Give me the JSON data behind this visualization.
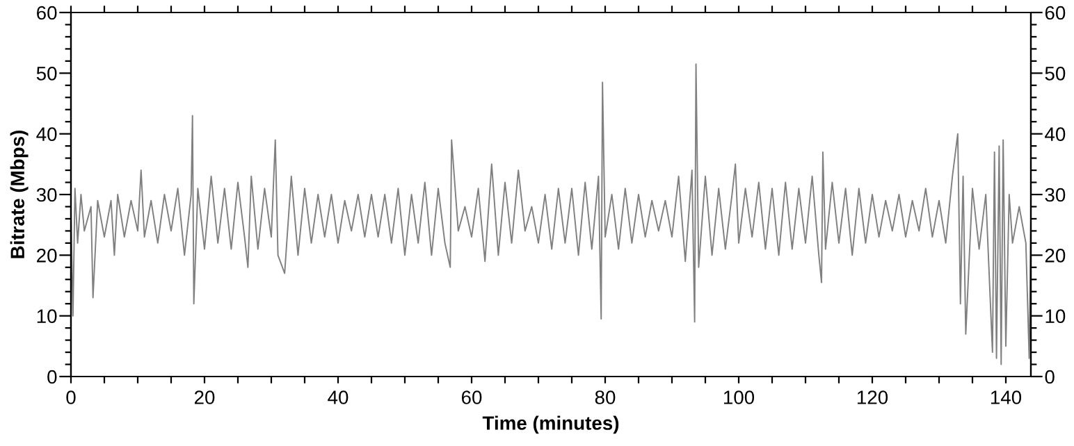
{
  "chart_data": {
    "type": "line",
    "xlabel": "Time (minutes)",
    "ylabel": "Bitrate (Mbps)",
    "xlim": [
      0,
      143.75
    ],
    "ylim": [
      0,
      60
    ],
    "y2lim": [
      0,
      60
    ],
    "xticks": [
      0,
      {
        "value": 5,
        "label": null
      },
      {
        "value": 10,
        "label": null
      },
      {
        "value": 15,
        "label": null
      },
      20,
      {
        "value": 25,
        "label": null
      },
      {
        "value": 30,
        "label": null
      },
      {
        "value": 35,
        "label": null
      },
      40,
      {
        "value": 45,
        "label": null
      },
      {
        "value": 50,
        "label": null
      },
      {
        "value": 55,
        "label": null
      },
      60,
      {
        "value": 65,
        "label": null
      },
      {
        "value": 70,
        "label": null
      },
      {
        "value": 75,
        "label": null
      },
      80,
      {
        "value": 85,
        "label": null
      },
      {
        "value": 90,
        "label": null
      },
      {
        "value": 95,
        "label": null
      },
      100,
      {
        "value": 105,
        "label": null
      },
      {
        "value": 110,
        "label": null
      },
      {
        "value": 115,
        "label": null
      },
      120,
      {
        "value": 125,
        "label": null
      },
      {
        "value": 130,
        "label": null
      },
      {
        "value": 135,
        "label": null
      },
      140
    ],
    "yticks": [
      0,
      {
        "value": 2,
        "label": null
      },
      {
        "value": 4,
        "label": null
      },
      {
        "value": 6,
        "label": null
      },
      {
        "value": 8,
        "label": null
      },
      10,
      {
        "value": 12,
        "label": null
      },
      {
        "value": 14,
        "label": null
      },
      {
        "value": 16,
        "label": null
      },
      {
        "value": 18,
        "label": null
      },
      20,
      {
        "value": 22,
        "label": null
      },
      {
        "value": 24,
        "label": null
      },
      {
        "value": 26,
        "label": null
      },
      {
        "value": 28,
        "label": null
      },
      30,
      {
        "value": 32,
        "label": null
      },
      {
        "value": 34,
        "label": null
      },
      {
        "value": 36,
        "label": null
      },
      {
        "value": 38,
        "label": null
      },
      40,
      {
        "value": 42,
        "label": null
      },
      {
        "value": 44,
        "label": null
      },
      {
        "value": 46,
        "label": null
      },
      {
        "value": 48,
        "label": null
      },
      50,
      {
        "value": 52,
        "label": null
      },
      {
        "value": 54,
        "label": null
      },
      {
        "value": 56,
        "label": null
      },
      {
        "value": 58,
        "label": null
      },
      60
    ],
    "y2ticks": [
      0,
      {
        "value": 2,
        "label": null
      },
      {
        "value": 4,
        "label": null
      },
      {
        "value": 6,
        "label": null
      },
      {
        "value": 8,
        "label": null
      },
      10,
      {
        "value": 12,
        "label": null
      },
      {
        "value": 14,
        "label": null
      },
      {
        "value": 16,
        "label": null
      },
      {
        "value": 18,
        "label": null
      },
      20,
      {
        "value": 22,
        "label": null
      },
      {
        "value": 24,
        "label": null
      },
      {
        "value": 26,
        "label": null
      },
      {
        "value": 28,
        "label": null
      },
      30,
      {
        "value": 32,
        "label": null
      },
      {
        "value": 34,
        "label": null
      },
      {
        "value": 36,
        "label": null
      },
      {
        "value": 38,
        "label": null
      },
      40,
      {
        "value": 42,
        "label": null
      },
      {
        "value": 44,
        "label": null
      },
      {
        "value": 46,
        "label": null
      },
      {
        "value": 48,
        "label": null
      },
      50,
      {
        "value": 52,
        "label": null
      },
      {
        "value": 54,
        "label": null
      },
      {
        "value": 56,
        "label": null
      },
      {
        "value": 58,
        "label": null
      },
      60
    ],
    "grid": false,
    "marker": "none",
    "line_style": "solid",
    "series": [
      {
        "color": "#808080",
        "x": [
          0,
          0.3,
          0.6,
          1,
          1.5,
          2,
          3,
          3.3,
          4,
          5,
          6,
          6.5,
          7,
          8,
          9,
          10,
          10.5,
          11,
          12,
          13,
          14,
          15,
          16,
          17,
          18,
          18.2,
          18.4,
          19,
          20,
          21,
          22,
          23,
          24,
          25,
          26,
          26.5,
          27,
          28,
          29,
          30,
          30.6,
          31,
          32,
          33,
          34,
          35,
          36,
          37,
          38,
          39,
          40,
          41,
          42,
          43,
          44,
          45,
          46,
          47,
          48,
          49,
          50,
          51,
          52,
          53,
          54,
          55,
          56,
          56.8,
          57,
          58,
          59,
          60,
          61,
          62,
          63,
          64,
          65,
          66,
          67,
          68,
          69,
          70,
          71,
          72,
          73,
          74,
          75,
          76,
          77,
          78,
          79,
          79.4,
          79.6,
          80,
          81,
          82,
          83,
          84,
          85,
          86,
          87,
          88,
          89,
          90,
          91,
          92,
          93,
          93.4,
          93.6,
          94,
          95,
          96,
          97,
          98,
          99,
          99.5,
          100,
          101,
          102,
          103,
          104,
          105,
          106,
          107,
          108,
          109,
          110,
          111,
          112,
          112.4,
          112.6,
          113,
          114,
          115,
          116,
          117,
          118,
          119,
          120,
          121,
          122,
          123,
          124,
          125,
          126,
          127,
          128,
          129,
          130,
          131,
          132,
          132.8,
          133.2,
          133.6,
          134,
          135,
          136,
          137,
          138,
          138.3,
          138.6,
          139,
          139.3,
          139.6,
          140,
          140.5,
          141,
          142,
          143,
          143.5,
          143.75
        ],
        "values": [
          27,
          10,
          31,
          22,
          30,
          24,
          28,
          13,
          29,
          23,
          29,
          20,
          30,
          23,
          29,
          24,
          34,
          23,
          29,
          22,
          30,
          24,
          31,
          20,
          30,
          43,
          12,
          31,
          21,
          33,
          22,
          31,
          21,
          32,
          23,
          18,
          33,
          21,
          31,
          23,
          39,
          20,
          17,
          33,
          20,
          31,
          22,
          30,
          23,
          30,
          22,
          29,
          24,
          30,
          23,
          30,
          23,
          30,
          22,
          31,
          20,
          30,
          22,
          32,
          20,
          31,
          22,
          18,
          39,
          24,
          28,
          23,
          31,
          19,
          35,
          20,
          32,
          22,
          34,
          24,
          28,
          22,
          30,
          21,
          31,
          22,
          31,
          20,
          32,
          21,
          33,
          9.5,
          48.5,
          23,
          30,
          21,
          31,
          22,
          30,
          23,
          29,
          24,
          29,
          23,
          33,
          19,
          34,
          9,
          51.5,
          18,
          33,
          20,
          31,
          21,
          30,
          35,
          22,
          31,
          23,
          32,
          21,
          31,
          20,
          32,
          21,
          31,
          22,
          33,
          20,
          15.5,
          37,
          21,
          32,
          22,
          31,
          20,
          31,
          22,
          30,
          23,
          29,
          24,
          30,
          23,
          29,
          24,
          31,
          23,
          29,
          22,
          33,
          40,
          12,
          33,
          7,
          31,
          21,
          30,
          4,
          37,
          3,
          38,
          2,
          39,
          5,
          30,
          22,
          28,
          22,
          3,
          26
        ]
      }
    ]
  }
}
